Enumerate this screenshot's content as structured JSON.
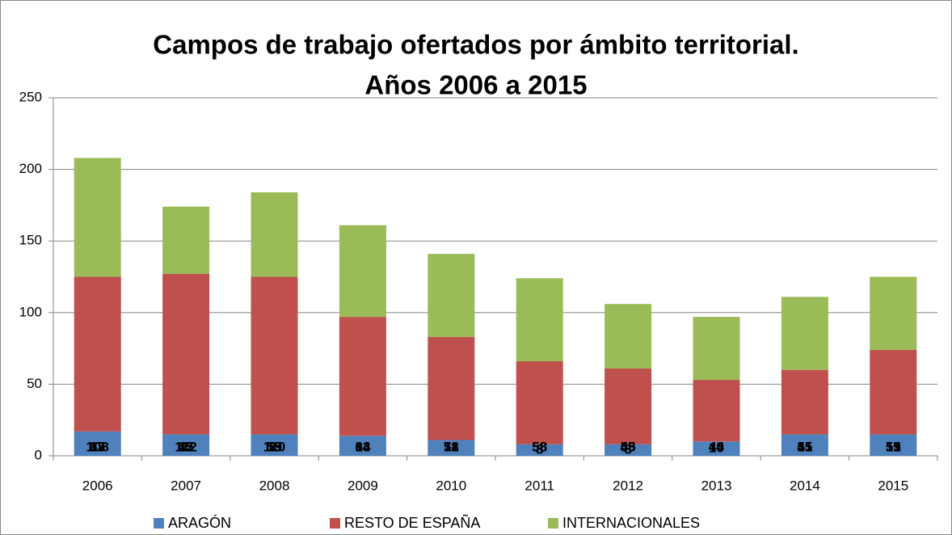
{
  "chart_data": {
    "type": "stacked_bar",
    "title": [
      "Campos de trabajo ofertados por ámbito territorial.",
      "Años 2006 a 2015"
    ],
    "categories": [
      "2006",
      "2007",
      "2008",
      "2009",
      "2010",
      "2011",
      "2012",
      "2013",
      "2014",
      "2015"
    ],
    "series": [
      {
        "name": "ARAGÓN",
        "color": "#4f81bd",
        "values": [
          17,
          15,
          15,
          14,
          11,
          8,
          8,
          10,
          15,
          15
        ]
      },
      {
        "name": "RESTO DE ESPAÑA",
        "color": "#c0504d",
        "values": [
          108,
          112,
          110,
          83,
          72,
          58,
          53,
          43,
          45,
          59
        ]
      },
      {
        "name": "INTERNACIONALES",
        "color": "#9bbb59",
        "values": [
          83,
          47,
          59,
          64,
          58,
          58,
          45,
          44,
          51,
          51
        ]
      }
    ],
    "ylim": [
      0,
      250
    ],
    "yticks": [
      0,
      50,
      100,
      150,
      200,
      250
    ],
    "grid": true,
    "legend": "bottom"
  }
}
